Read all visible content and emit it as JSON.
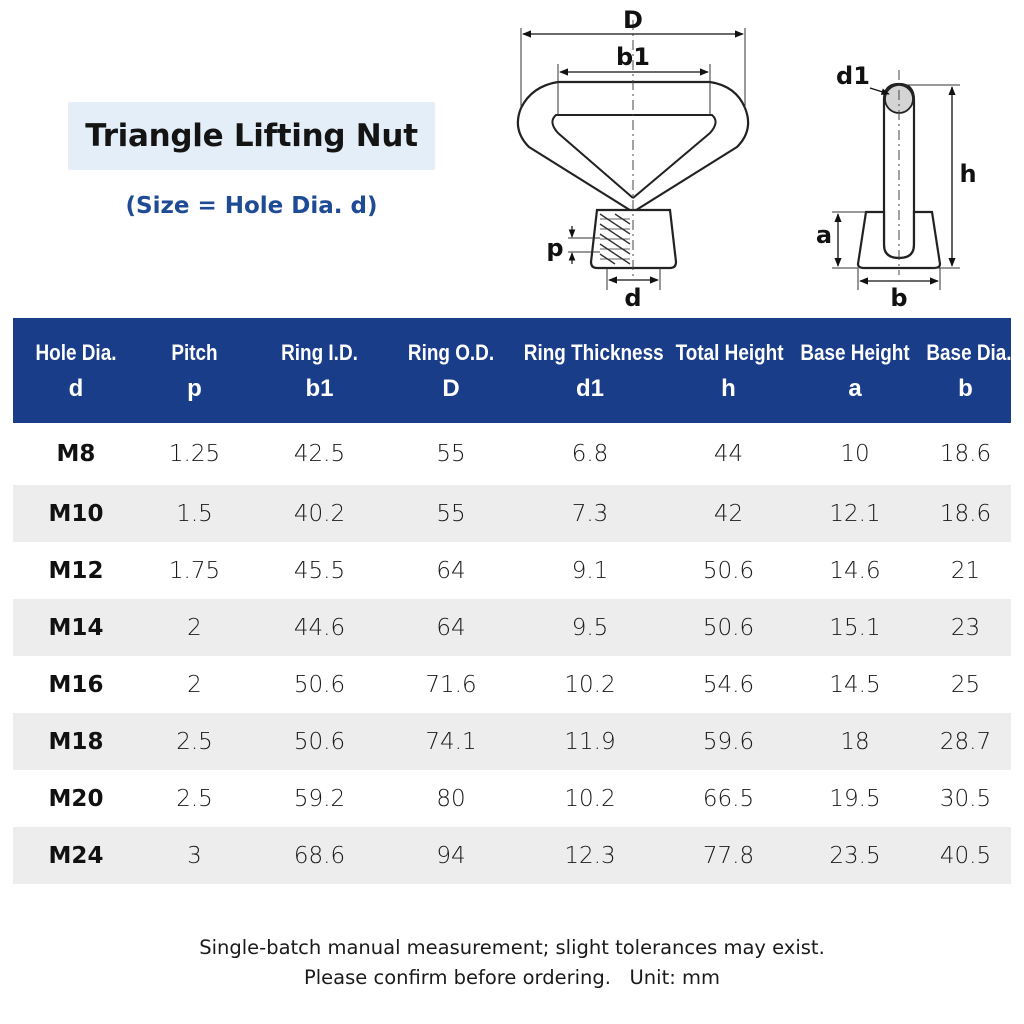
{
  "title": "Triangle Lifting Nut",
  "subtitle": "(Size = Hole Dia. d)",
  "diagram": {
    "front_labels": {
      "D": "D",
      "b1": "b1",
      "p": "p",
      "d": "d"
    },
    "side_labels": {
      "d1": "d1",
      "h": "h",
      "a": "a",
      "b": "b"
    }
  },
  "table": {
    "headers": [
      {
        "name": "Hole Dia.",
        "symbol": "d"
      },
      {
        "name": "Pitch",
        "symbol": "p"
      },
      {
        "name": "Ring I.D.",
        "symbol": "b1"
      },
      {
        "name": "Ring O.D.",
        "symbol": "D"
      },
      {
        "name": "Ring Thickness",
        "symbol": "d1"
      },
      {
        "name": "Total Height",
        "symbol": "h"
      },
      {
        "name": "Base Height",
        "symbol": "a"
      },
      {
        "name": "Base Dia.",
        "symbol": "b"
      }
    ],
    "rows": [
      [
        "M8",
        "1.25",
        "42.5",
        "55",
        "6.8",
        "44",
        "10",
        "18.6"
      ],
      [
        "M10",
        "1.5",
        "40.2",
        "55",
        "7.3",
        "42",
        "12.1",
        "18.6"
      ],
      [
        "M12",
        "1.75",
        "45.5",
        "64",
        "9.1",
        "50.6",
        "14.6",
        "21"
      ],
      [
        "M14",
        "2",
        "44.6",
        "64",
        "9.5",
        "50.6",
        "15.1",
        "23"
      ],
      [
        "M16",
        "2",
        "50.6",
        "71.6",
        "10.2",
        "54.6",
        "14.5",
        "25"
      ],
      [
        "M18",
        "2.5",
        "50.6",
        "74.1",
        "11.9",
        "59.6",
        "18",
        "28.7"
      ],
      [
        "M20",
        "2.5",
        "59.2",
        "80",
        "10.2",
        "66.5",
        "19.5",
        "30.5"
      ],
      [
        "M24",
        "3",
        "68.6",
        "94",
        "12.3",
        "77.8",
        "23.5",
        "40.5"
      ]
    ]
  },
  "note": {
    "line1": "Single-batch manual measurement; slight tolerances may exist.",
    "line2": "Please confirm before ordering.   Unit: mm"
  },
  "colors": {
    "header_bg": "#1a3d8a",
    "title_box_bg": "#e3eef8",
    "subtitle": "#1f4a94",
    "row_alt_bg": "#ededed"
  }
}
